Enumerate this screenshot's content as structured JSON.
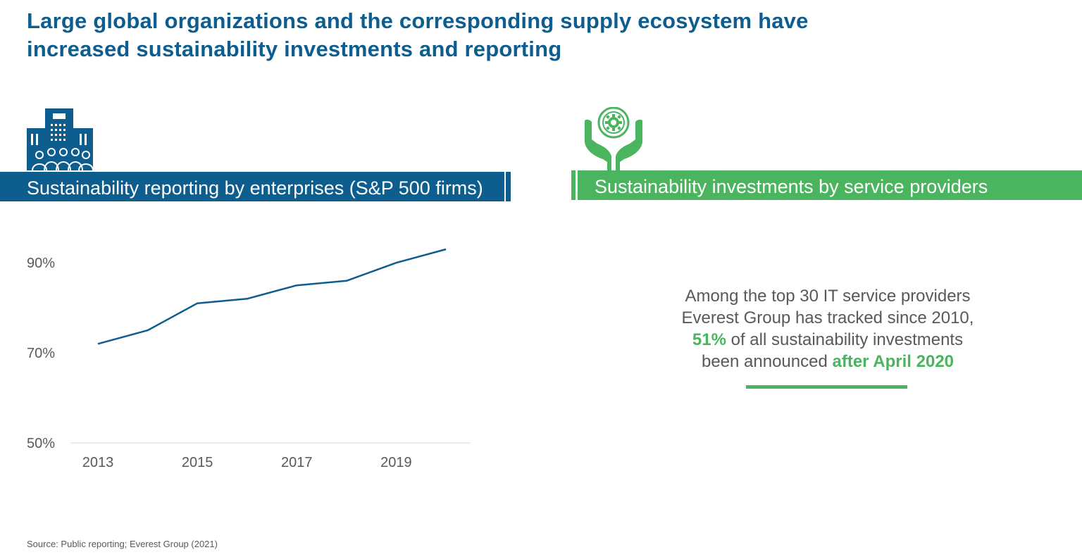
{
  "title": {
    "line1": "Large global organizations and the corresponding supply ecosystem have",
    "line2": "increased sustainability investments and reporting"
  },
  "icons": {
    "left": "office-buildings-people-icon",
    "right": "hands-holding-gear-icon"
  },
  "colors": {
    "blue": "#0d5d8f",
    "green": "#4bb45e",
    "text_gray": "#595959"
  },
  "left_panel": {
    "header": "Sustainability reporting by enterprises (S&P 500 firms)"
  },
  "right_panel": {
    "header": "Sustainability investments by service providers",
    "stat": {
      "line1": "Among the top 30 IT service providers",
      "line2": "Everest Group has tracked since 2010,",
      "highlight1": "51%",
      "line3_rest": " of all sustainability investments",
      "line4_start": "been announced ",
      "highlight2": "after April 2020"
    }
  },
  "chart_data": {
    "type": "line",
    "title": "",
    "xlabel": "",
    "ylabel": "",
    "x": [
      2013,
      2014,
      2015,
      2016,
      2017,
      2018,
      2019,
      2020
    ],
    "series": [
      {
        "values": [
          72,
          75,
          81,
          82,
          85,
          86,
          90,
          93
        ]
      }
    ],
    "x_tick_labels": [
      "2013",
      "2015",
      "2017",
      "2019"
    ],
    "y_tick_labels": [
      "50%",
      "70%",
      "90%"
    ],
    "ylim": [
      50,
      93
    ],
    "grid": false,
    "line_color": "#0d5d8f"
  },
  "source": "Source:  Public reporting; Everest Group (2021)"
}
